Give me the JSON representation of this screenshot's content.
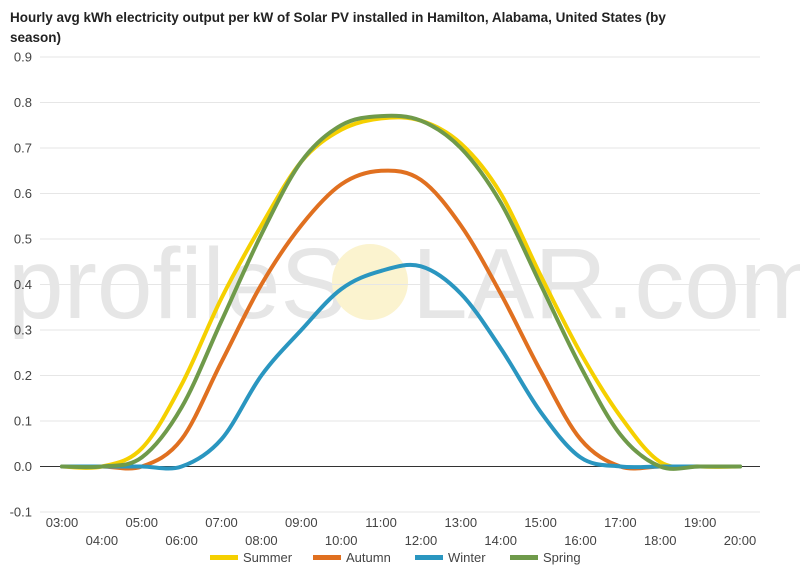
{
  "chart_data": {
    "type": "line",
    "title_line1": "Hourly avg kWh electricity output per kW of Solar PV installed in Hamilton, Alabama, United States (by",
    "title_line2": "season)",
    "watermark": {
      "left": "profileS",
      "right": "LAR.com"
    },
    "x": [
      "03:00",
      "04:00",
      "05:00",
      "06:00",
      "07:00",
      "08:00",
      "09:00",
      "10:00",
      "11:00",
      "12:00",
      "13:00",
      "14:00",
      "15:00",
      "16:00",
      "17:00",
      "18:00",
      "19:00",
      "20:00"
    ],
    "x_tick_labels_upper": [
      "03:00",
      "05:00",
      "07:00",
      "09:00",
      "11:00",
      "13:00",
      "15:00",
      "17:00",
      "19:00"
    ],
    "x_tick_labels_lower": [
      "04:00",
      "06:00",
      "08:00",
      "10:00",
      "12:00",
      "14:00",
      "16:00",
      "18:00",
      "20:00"
    ],
    "ylim": [
      -0.1,
      0.9
    ],
    "yticks": [
      "0.9",
      "0.8",
      "0.7",
      "0.6",
      "0.5",
      "0.4",
      "0.3",
      "0.2",
      "0.1",
      "0.0",
      "-0.1"
    ],
    "grid": true,
    "legend_position": "bottom",
    "series": [
      {
        "name": "Summer",
        "color": "#f5d000",
        "values": [
          0.0,
          0.0,
          0.04,
          0.18,
          0.37,
          0.53,
          0.67,
          0.74,
          0.765,
          0.76,
          0.71,
          0.6,
          0.42,
          0.25,
          0.11,
          0.01,
          0.0,
          0.0
        ]
      },
      {
        "name": "Autumn",
        "color": "#e07020",
        "values": [
          0.0,
          0.0,
          0.0,
          0.06,
          0.23,
          0.4,
          0.53,
          0.62,
          0.65,
          0.63,
          0.53,
          0.38,
          0.21,
          0.06,
          0.0,
          0.0,
          0.0,
          0.0
        ]
      },
      {
        "name": "Winter",
        "color": "#2a96c0",
        "values": [
          0.0,
          0.0,
          0.0,
          0.0,
          0.06,
          0.2,
          0.3,
          0.39,
          0.43,
          0.44,
          0.38,
          0.26,
          0.12,
          0.02,
          0.0,
          0.0,
          0.0,
          0.0
        ]
      },
      {
        "name": "Spring",
        "color": "#6f9a4a",
        "values": [
          0.0,
          0.0,
          0.02,
          0.13,
          0.32,
          0.51,
          0.67,
          0.75,
          0.77,
          0.76,
          0.7,
          0.58,
          0.4,
          0.22,
          0.07,
          0.0,
          0.0,
          0.0
        ]
      }
    ]
  }
}
